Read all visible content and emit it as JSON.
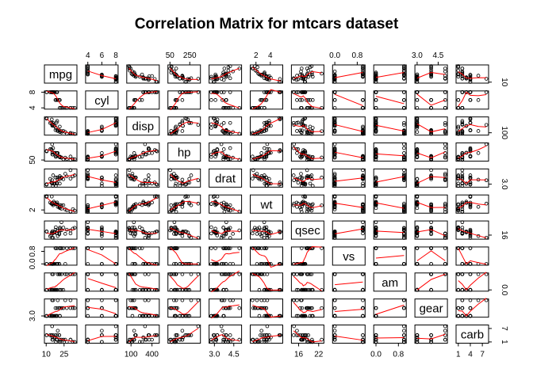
{
  "chart_data": {
    "type": "scatter",
    "title": "Correlation Matrix for mtcars dataset",
    "variables": [
      "mpg",
      "cyl",
      "disp",
      "hp",
      "drat",
      "wt",
      "qsec",
      "vs",
      "am",
      "gear",
      "carb"
    ],
    "ranges": {
      "mpg": [
        10.4,
        33.9
      ],
      "cyl": [
        4,
        8
      ],
      "disp": [
        71.1,
        472
      ],
      "hp": [
        52,
        335
      ],
      "drat": [
        2.76,
        4.93
      ],
      "wt": [
        1.513,
        5.424
      ],
      "qsec": [
        14.5,
        22.9
      ],
      "vs": [
        0,
        1
      ],
      "am": [
        0,
        1
      ],
      "gear": [
        3,
        5
      ],
      "carb": [
        1,
        8
      ]
    },
    "ticks": {
      "mpg": [
        {
          "v": 10,
          "label": "10"
        },
        {
          "v": 25,
          "label": "25"
        }
      ],
      "cyl": [
        {
          "v": 4,
          "label": "4"
        },
        {
          "v": 6,
          "label": "6"
        },
        {
          "v": 8,
          "label": "8"
        }
      ],
      "disp": [
        {
          "v": 50,
          "label": "50"
        },
        {
          "v": 100,
          "label": "100"
        },
        {
          "v": 250,
          "label": "250"
        },
        {
          "v": 400,
          "label": "400"
        }
      ],
      "hp": [
        {
          "v": 50,
          "label": "50"
        }
      ],
      "drat": [
        {
          "v": 3.0,
          "label": "3.0"
        },
        {
          "v": 4.5,
          "label": "4.5"
        }
      ],
      "wt": [
        {
          "v": 2,
          "label": "2"
        },
        {
          "v": 4,
          "label": "4"
        }
      ],
      "qsec": [
        {
          "v": 16,
          "label": "16"
        },
        {
          "v": 22,
          "label": "22"
        }
      ],
      "vs": [
        {
          "v": 0.0,
          "label": "0.0"
        },
        {
          "v": 0.8,
          "label": "0.8"
        }
      ],
      "am": [
        {
          "v": 0.0,
          "label": "0.0"
        },
        {
          "v": 0.8,
          "label": "0.8"
        }
      ],
      "gear": [
        {
          "v": 3.0,
          "label": "3.0"
        },
        {
          "v": 4.5,
          "label": "4.5"
        }
      ],
      "carb": [
        {
          "v": 1,
          "label": "1"
        },
        {
          "v": 4,
          "label": "4"
        },
        {
          "v": 7,
          "label": "7"
        }
      ]
    },
    "axis_labels": {
      "top": [
        {
          "var": "cyl",
          "ticks": [
            4,
            6,
            8
          ]
        },
        {
          "var": "hp",
          "ticks": [
            50,
            250
          ]
        },
        {
          "var": "wt",
          "ticks": [
            2,
            4
          ]
        },
        {
          "var": "vs",
          "ticks": [
            0.0,
            0.8
          ]
        },
        {
          "var": "gear",
          "ticks": [
            3.0,
            4.5
          ]
        }
      ],
      "bottom": [
        {
          "var": "mpg",
          "ticks": [
            10,
            25
          ]
        },
        {
          "var": "disp",
          "ticks": [
            100,
            400
          ]
        },
        {
          "var": "drat",
          "ticks": [
            3.0,
            4.5
          ]
        },
        {
          "var": "qsec",
          "ticks": [
            16,
            22
          ]
        },
        {
          "var": "am",
          "ticks": [
            0.0,
            0.8
          ]
        },
        {
          "var": "carb",
          "ticks": [
            1,
            4,
            7
          ]
        }
      ],
      "left": [
        {
          "var": "cyl",
          "ticks": [
            4,
            8
          ]
        },
        {
          "var": "hp",
          "ticks": [
            50
          ]
        },
        {
          "var": "wt",
          "ticks": [
            2
          ]
        },
        {
          "var": "vs",
          "ticks": [
            0.0,
            0.8
          ]
        },
        {
          "var": "gear",
          "ticks": [
            3.0
          ]
        }
      ],
      "right": [
        {
          "var": "mpg",
          "ticks": [
            10
          ]
        },
        {
          "var": "disp",
          "ticks": [
            100
          ]
        },
        {
          "var": "drat",
          "ticks": [
            3.0
          ]
        },
        {
          "var": "qsec",
          "ticks": [
            16
          ]
        },
        {
          "var": "am",
          "ticks": [
            0.0
          ]
        },
        {
          "var": "carb",
          "ticks": [
            1,
            7
          ]
        }
      ]
    },
    "observations": [
      [
        21.0,
        6,
        160.0,
        110,
        3.9,
        2.62,
        16.46,
        0,
        1,
        4,
        4
      ],
      [
        21.0,
        6,
        160.0,
        110,
        3.9,
        2.875,
        17.02,
        0,
        1,
        4,
        4
      ],
      [
        22.8,
        4,
        108.0,
        93,
        3.85,
        2.32,
        18.61,
        1,
        1,
        4,
        1
      ],
      [
        21.4,
        6,
        258.0,
        110,
        3.08,
        3.215,
        19.44,
        1,
        0,
        3,
        1
      ],
      [
        18.7,
        8,
        360.0,
        175,
        3.15,
        3.44,
        17.02,
        0,
        0,
        3,
        2
      ],
      [
        18.1,
        6,
        225.0,
        105,
        2.76,
        3.46,
        20.22,
        1,
        0,
        3,
        1
      ],
      [
        14.3,
        8,
        360.0,
        245,
        3.21,
        3.57,
        15.84,
        0,
        0,
        3,
        4
      ],
      [
        24.4,
        4,
        146.7,
        62,
        3.69,
        3.19,
        20.0,
        1,
        0,
        4,
        2
      ],
      [
        22.8,
        4,
        140.8,
        95,
        3.92,
        3.15,
        22.9,
        1,
        0,
        4,
        2
      ],
      [
        19.2,
        6,
        167.6,
        123,
        3.92,
        3.44,
        18.3,
        1,
        0,
        4,
        4
      ],
      [
        17.8,
        6,
        167.6,
        123,
        3.92,
        3.44,
        18.9,
        1,
        0,
        4,
        4
      ],
      [
        16.4,
        8,
        275.8,
        180,
        3.07,
        4.07,
        17.4,
        0,
        0,
        3,
        3
      ],
      [
        17.3,
        8,
        275.8,
        180,
        3.07,
        3.73,
        17.6,
        0,
        0,
        3,
        3
      ],
      [
        15.2,
        8,
        275.8,
        180,
        3.07,
        3.78,
        18.0,
        0,
        0,
        3,
        3
      ],
      [
        10.4,
        8,
        472.0,
        205,
        2.93,
        5.25,
        17.98,
        0,
        0,
        3,
        4
      ],
      [
        10.4,
        8,
        460.0,
        215,
        3.0,
        5.424,
        17.82,
        0,
        0,
        3,
        4
      ],
      [
        14.7,
        8,
        440.0,
        230,
        3.23,
        5.345,
        17.42,
        0,
        0,
        3,
        4
      ],
      [
        32.4,
        4,
        78.7,
        66,
        4.08,
        2.2,
        19.47,
        1,
        1,
        4,
        1
      ],
      [
        30.4,
        4,
        75.7,
        52,
        4.93,
        1.615,
        18.52,
        1,
        1,
        4,
        2
      ],
      [
        33.9,
        4,
        71.1,
        65,
        4.22,
        1.835,
        19.9,
        1,
        1,
        4,
        1
      ],
      [
        21.5,
        4,
        120.1,
        97,
        3.7,
        2.465,
        20.01,
        1,
        0,
        3,
        1
      ],
      [
        15.5,
        8,
        318.0,
        150,
        2.76,
        3.52,
        16.87,
        0,
        0,
        3,
        2
      ],
      [
        15.2,
        8,
        304.0,
        150,
        3.15,
        3.435,
        17.3,
        0,
        0,
        3,
        2
      ],
      [
        13.3,
        8,
        350.0,
        245,
        3.73,
        3.84,
        15.41,
        0,
        0,
        3,
        4
      ],
      [
        19.2,
        8,
        400.0,
        175,
        3.08,
        3.845,
        17.05,
        0,
        0,
        3,
        2
      ],
      [
        27.3,
        4,
        79.0,
        66,
        4.08,
        1.935,
        18.9,
        1,
        1,
        4,
        1
      ],
      [
        26.0,
        4,
        120.3,
        91,
        4.43,
        2.14,
        16.7,
        0,
        1,
        5,
        2
      ],
      [
        30.4,
        4,
        95.1,
        113,
        3.77,
        1.513,
        16.9,
        1,
        1,
        5,
        2
      ],
      [
        15.8,
        8,
        351.0,
        264,
        4.22,
        3.17,
        14.5,
        0,
        1,
        5,
        4
      ],
      [
        19.7,
        6,
        145.0,
        175,
        3.62,
        2.77,
        15.5,
        0,
        1,
        5,
        6
      ],
      [
        15.0,
        8,
        301.0,
        335,
        3.54,
        3.57,
        14.6,
        0,
        1,
        5,
        8
      ],
      [
        21.4,
        4,
        121.0,
        109,
        4.11,
        2.78,
        18.6,
        1,
        1,
        4,
        2
      ]
    ],
    "point_color": "#000000",
    "smooth_color": "#ff0000",
    "legend": "none",
    "grid": false
  }
}
